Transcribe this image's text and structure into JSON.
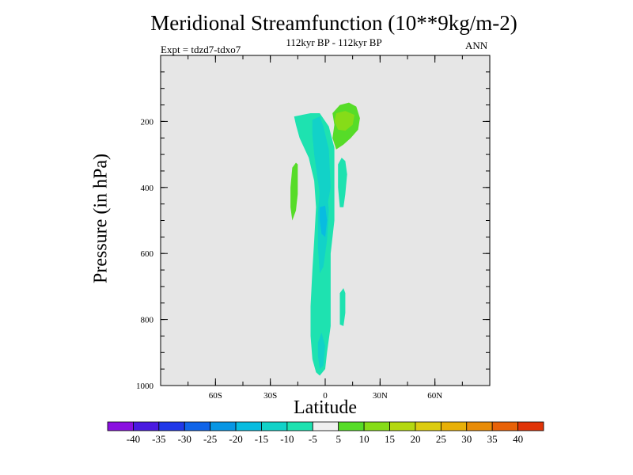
{
  "chart_data": {
    "type": "contour",
    "title": "Meridional Streamfunction (10**9kg/m-2)",
    "subtitle": "112kyr BP - 112kyr BP",
    "experiment_label": "Expt = tdzd7-tdxo7",
    "season_label": "ANN",
    "xlabel": "Latitude",
    "ylabel": "Pressure (in hPa)",
    "xlim": [
      -90,
      90
    ],
    "ylim": [
      1000,
      0
    ],
    "x_ticks": [
      {
        "value": -60,
        "label": "60S"
      },
      {
        "value": -30,
        "label": "30S"
      },
      {
        "value": 0,
        "label": "0"
      },
      {
        "value": 30,
        "label": "30N"
      },
      {
        "value": 60,
        "label": "60N"
      }
    ],
    "y_ticks": [
      {
        "value": 200,
        "label": "200"
      },
      {
        "value": 400,
        "label": "400"
      },
      {
        "value": 600,
        "label": "600"
      },
      {
        "value": 800,
        "label": "800"
      },
      {
        "value": 1000,
        "label": "1000"
      }
    ],
    "background_color": "#e6e6e6",
    "colorbar": {
      "labels": [
        "-40",
        "-35",
        "-30",
        "-25",
        "-20",
        "-15",
        "-10",
        "-5",
        "5",
        "10",
        "15",
        "20",
        "25",
        "30",
        "35",
        "40"
      ],
      "colors": [
        "#8a10e0",
        "#4a1ae0",
        "#2038e8",
        "#1064e8",
        "#0896e4",
        "#08bce0",
        "#12d2c8",
        "#1ee2b0",
        "#f0f0f0",
        "#56dc28",
        "#86dc18",
        "#b4d810",
        "#dccc10",
        "#e8b008",
        "#e88c08",
        "#e86208",
        "#e03408"
      ]
    },
    "contour_regions": [
      {
        "name": "main negative band",
        "level": -10,
        "color": "#1ee2b0",
        "points": [
          [
            -17,
            185
          ],
          [
            -8,
            175
          ],
          [
            -3,
            175
          ],
          [
            2,
            215
          ],
          [
            5,
            280
          ],
          [
            5,
            380
          ],
          [
            5,
            500
          ],
          [
            3,
            600
          ],
          [
            3,
            720
          ],
          [
            3,
            820
          ],
          [
            1,
            900
          ],
          [
            0,
            950
          ],
          [
            -3,
            970
          ],
          [
            -5,
            960
          ],
          [
            -7,
            920
          ],
          [
            -8,
            850
          ],
          [
            -8,
            760
          ],
          [
            -7,
            650
          ],
          [
            -6,
            560
          ],
          [
            -5,
            460
          ],
          [
            -6,
            380
          ],
          [
            -9,
            310
          ],
          [
            -14,
            250
          ],
          [
            -16,
            210
          ]
        ]
      },
      {
        "name": "main core upper",
        "level": -15,
        "color": "#12d2c8",
        "points": [
          [
            -7,
            195
          ],
          [
            -3,
            185
          ],
          [
            -1,
            215
          ],
          [
            2,
            285
          ],
          [
            3,
            400
          ],
          [
            1,
            460
          ],
          [
            -2,
            460
          ],
          [
            -4,
            380
          ],
          [
            -6,
            300
          ],
          [
            -7,
            240
          ]
        ]
      },
      {
        "name": "main core mid",
        "level": -15,
        "color": "#12d2c8",
        "points": [
          [
            -3,
            410
          ],
          [
            1,
            410
          ],
          [
            2,
            470
          ],
          [
            1,
            560
          ],
          [
            -1,
            640
          ],
          [
            -3,
            660
          ],
          [
            -4,
            580
          ],
          [
            -4,
            480
          ]
        ]
      },
      {
        "name": "main core bottom",
        "level": -15,
        "color": "#12d2c8",
        "points": [
          [
            -4,
            870
          ],
          [
            -2,
            840
          ],
          [
            0,
            880
          ],
          [
            -1,
            940
          ],
          [
            -3,
            950
          ],
          [
            -4,
            910
          ]
        ]
      },
      {
        "name": "core minimum",
        "level": -20,
        "color": "#08bce0",
        "points": [
          [
            -3,
            460
          ],
          [
            0,
            455
          ],
          [
            1,
            500
          ],
          [
            0,
            550
          ],
          [
            -2,
            540
          ],
          [
            -3,
            500
          ]
        ]
      },
      {
        "name": "NH upper positive",
        "level": 5,
        "color": "#56dc28",
        "points": [
          [
            4,
            175
          ],
          [
            8,
            150
          ],
          [
            13,
            143
          ],
          [
            17,
            155
          ],
          [
            19,
            190
          ],
          [
            18,
            225
          ],
          [
            14,
            250
          ],
          [
            10,
            270
          ],
          [
            6,
            285
          ],
          [
            4,
            250
          ],
          [
            5,
            210
          ]
        ]
      },
      {
        "name": "NH upper maximum",
        "level": 10,
        "color": "#86dc18",
        "points": [
          [
            6,
            175
          ],
          [
            11,
            168
          ],
          [
            16,
            180
          ],
          [
            15,
            210
          ],
          [
            11,
            228
          ],
          [
            7,
            225
          ],
          [
            5,
            200
          ]
        ]
      },
      {
        "name": "SH positive blob",
        "level": 5,
        "color": "#56dc28",
        "points": [
          [
            -18,
            340
          ],
          [
            -16,
            325
          ],
          [
            -15,
            330
          ],
          [
            -15,
            370
          ],
          [
            -15,
            420
          ],
          [
            -16,
            470
          ],
          [
            -18,
            500
          ],
          [
            -19,
            460
          ],
          [
            -19,
            400
          ]
        ]
      },
      {
        "name": "NH mid negative blob",
        "level": -10,
        "color": "#1ee2b0",
        "points": [
          [
            7,
            330
          ],
          [
            9,
            310
          ],
          [
            11,
            320
          ],
          [
            12,
            360
          ],
          [
            11,
            420
          ],
          [
            10,
            460
          ],
          [
            8,
            460
          ],
          [
            7,
            400
          ]
        ]
      },
      {
        "name": "NH lower negative blob",
        "level": -10,
        "color": "#1ee2b0",
        "points": [
          [
            8,
            720
          ],
          [
            10,
            705
          ],
          [
            11,
            720
          ],
          [
            11,
            780
          ],
          [
            10,
            820
          ],
          [
            8,
            815
          ],
          [
            8,
            770
          ]
        ]
      }
    ]
  }
}
